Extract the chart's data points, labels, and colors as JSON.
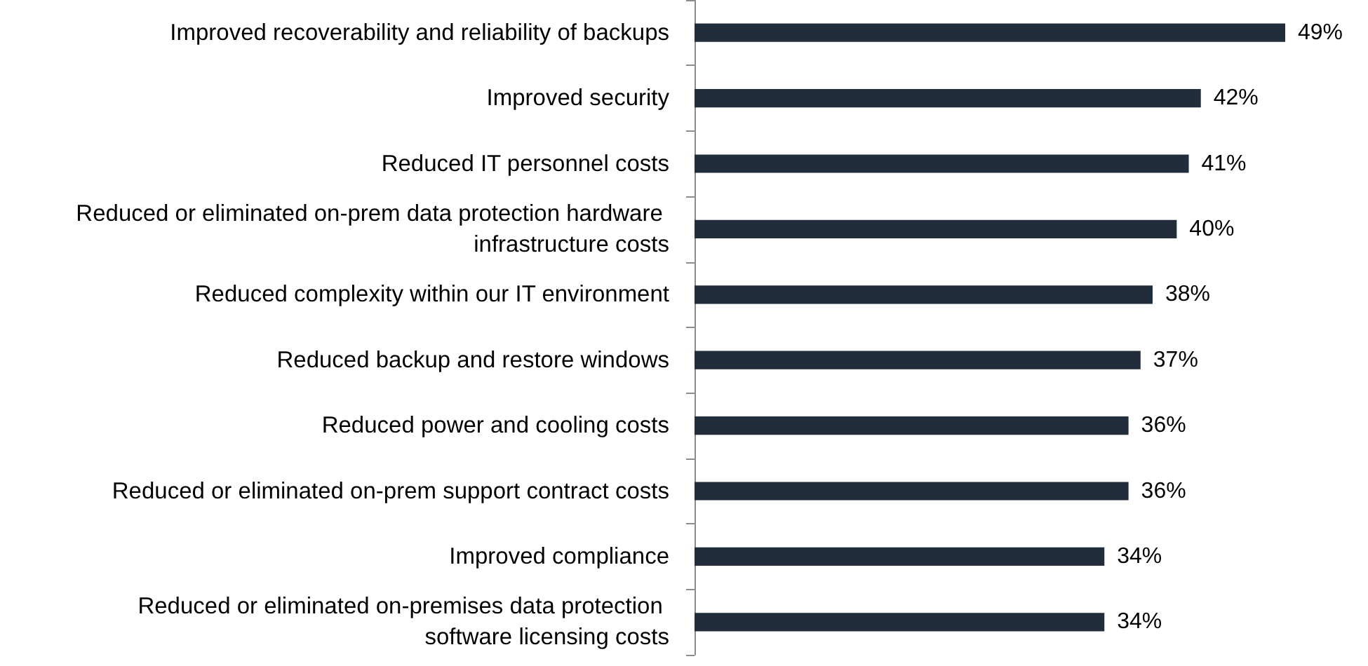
{
  "chart_data": {
    "type": "bar",
    "orientation": "horizontal",
    "categories": [
      "Improved recoverability and reliability of backups",
      "Improved security",
      "Reduced IT personnel costs",
      "Reduced or eliminated on-prem data protection hardware infrastructure costs",
      "Reduced complexity within our IT environment",
      "Reduced backup and restore windows",
      "Reduced power and cooling costs",
      "Reduced or eliminated on-prem support contract costs",
      "Improved compliance",
      "Reduced or eliminated on-premises data protection software licensing costs"
    ],
    "values": [
      49,
      42,
      41,
      40,
      38,
      37,
      36,
      36,
      34,
      34
    ],
    "value_labels": [
      "49%",
      "42%",
      "41%",
      "40%",
      "38%",
      "37%",
      "36%",
      "36%",
      "34%",
      "34%"
    ],
    "color": "#222d3b"
  }
}
